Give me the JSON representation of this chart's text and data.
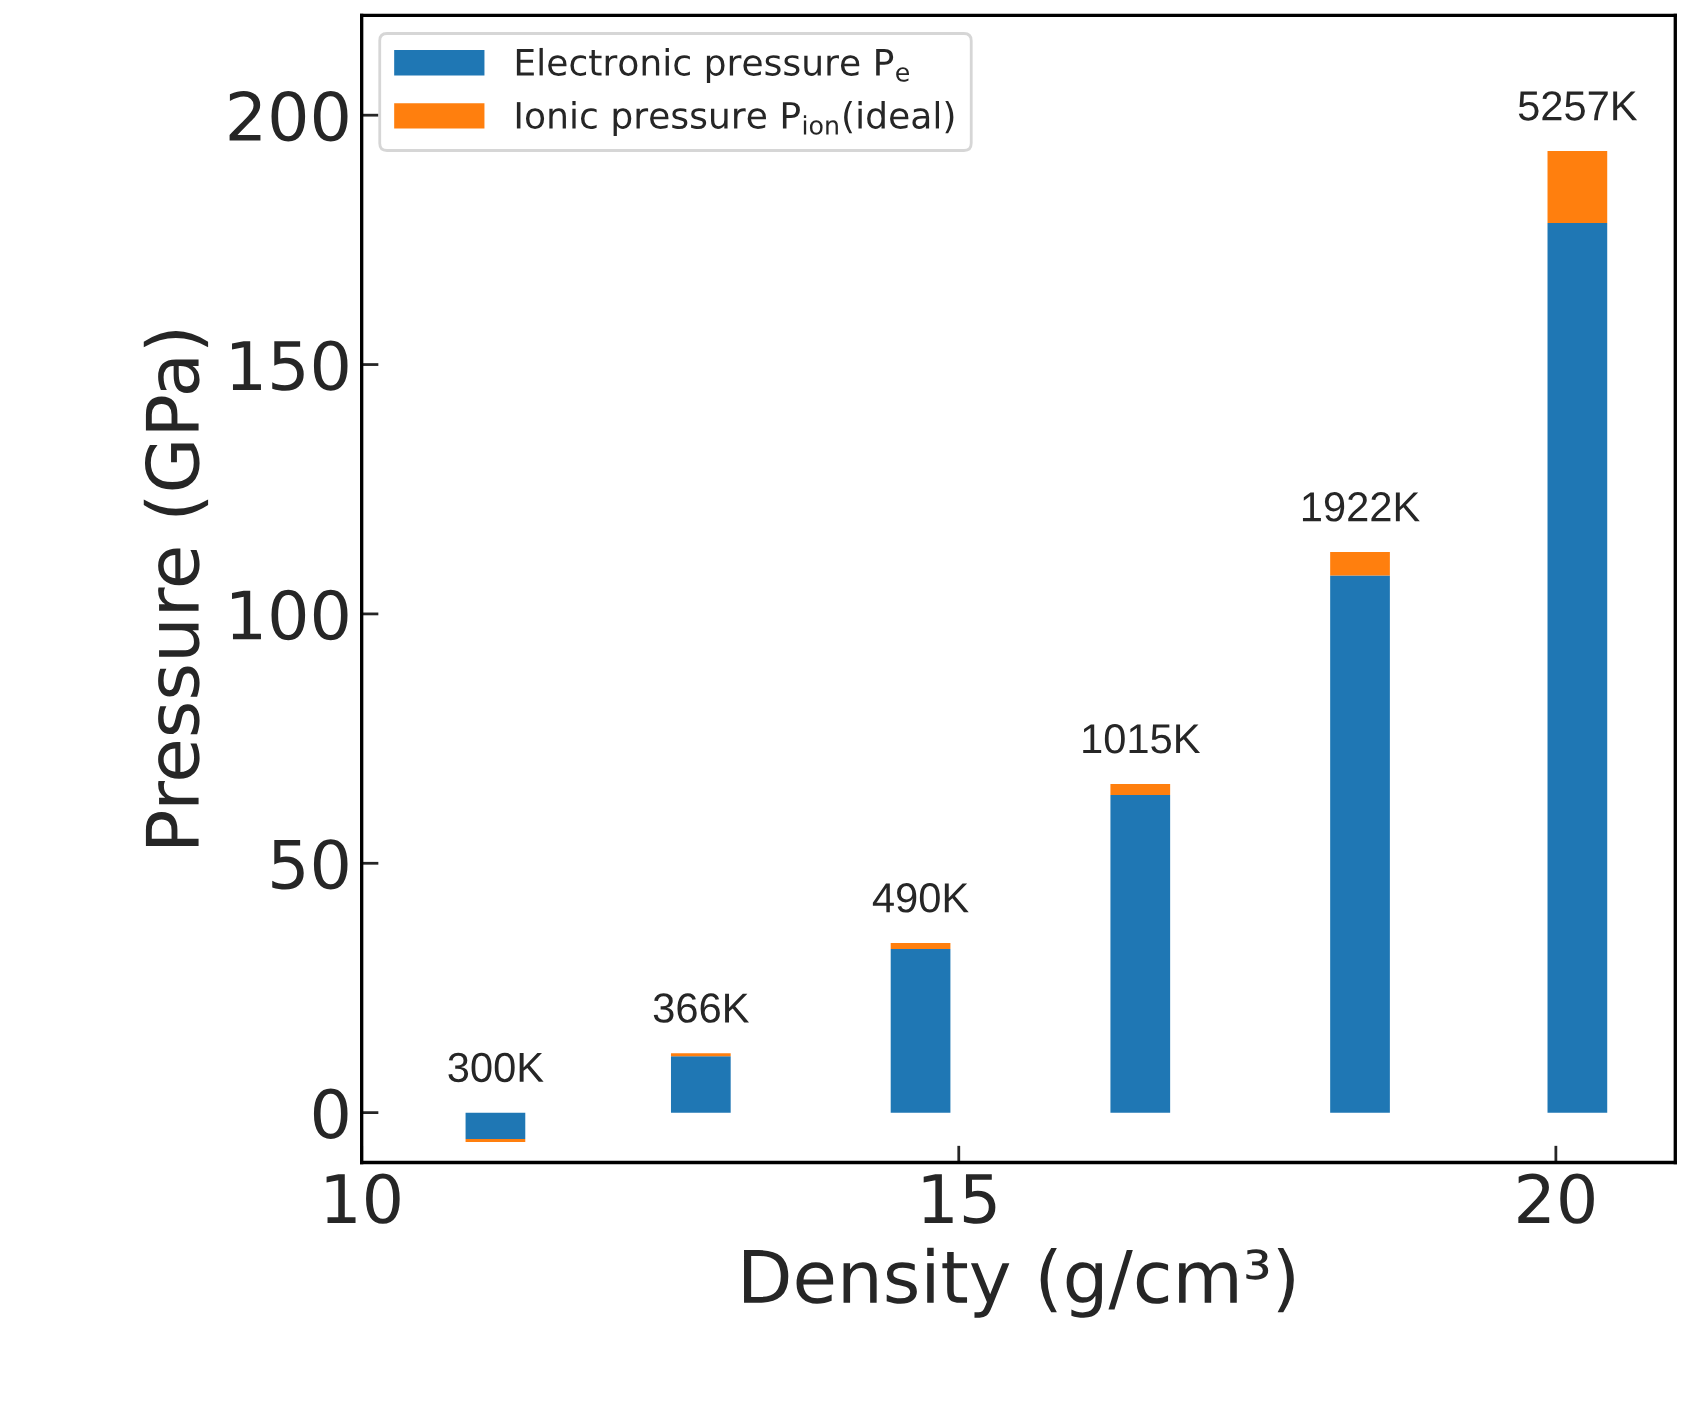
{
  "chart_data": {
    "type": "bar",
    "stacked": true,
    "xlabel": "Density (g/cm³)",
    "ylabel": "Pressure (GPa)",
    "x": [
      11.12,
      12.84,
      14.68,
      16.52,
      18.36,
      20.18
    ],
    "series": [
      {
        "name": "Electronic pressure P$_{e}$",
        "color": "#1f77b4",
        "values": [
          -5.3,
          11.3,
          32.8,
          63.7,
          107.7,
          178.4
        ]
      },
      {
        "name": "Ionic pressure P$_{ion}$(ideal)",
        "color": "#ff7f0e",
        "values": [
          -0.6,
          0.6,
          1.2,
          2.2,
          4.7,
          14.4
        ]
      }
    ],
    "annotations": [
      {
        "text": "300K",
        "x": 11.12,
        "y": 0
      },
      {
        "text": "366K",
        "x": 12.84,
        "y": 11.9
      },
      {
        "text": "490K",
        "x": 14.68,
        "y": 34.0
      },
      {
        "text": "1015K",
        "x": 16.52,
        "y": 65.9
      },
      {
        "text": "1922K",
        "x": 18.36,
        "y": 112.4
      },
      {
        "text": "5257K",
        "x": 20.18,
        "y": 192.8
      }
    ],
    "xlim": [
      10,
      21
    ],
    "xticks": [
      10,
      15,
      20
    ],
    "ylim": [
      -10,
      220
    ],
    "yticks": [
      0,
      50,
      100,
      150,
      200
    ],
    "legend": "top left",
    "grid": false
  }
}
